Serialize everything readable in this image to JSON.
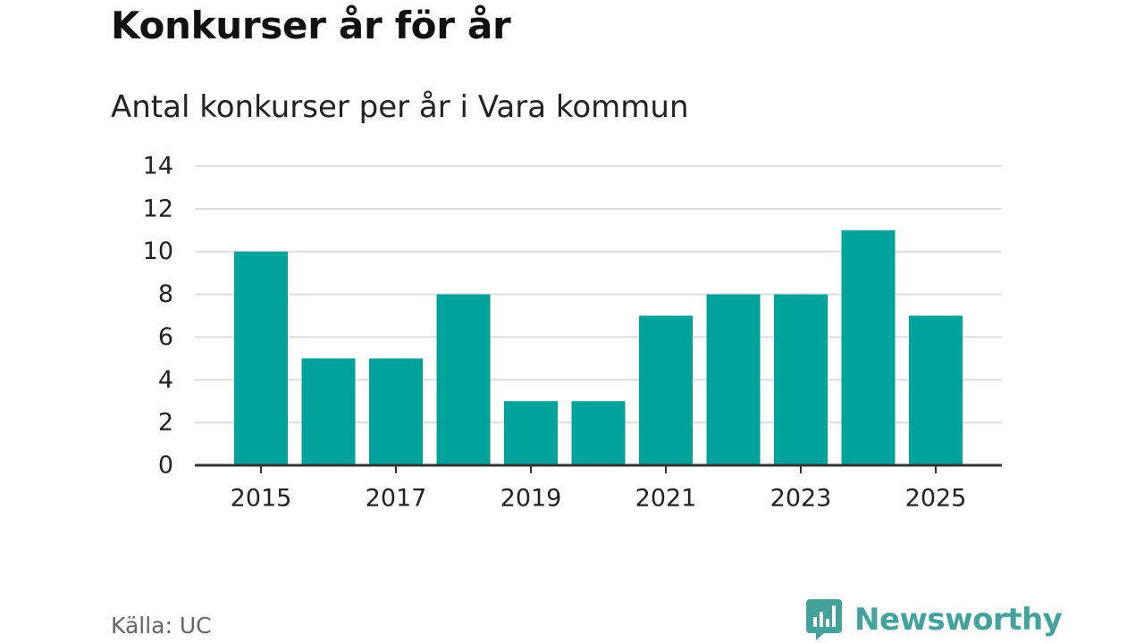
{
  "header": {
    "title": "Konkurser år för år",
    "subtitle": "Antal konkurser per år i Vara kommun"
  },
  "footer": {
    "source": "Källa: UC",
    "brand": "Newsworthy"
  },
  "colors": {
    "bar": "#00a39b",
    "grid": "#dddddd",
    "axis": "#333333",
    "brand": "#43a39c"
  },
  "icons": {
    "brand_logo": "newsworthy-logo-icon"
  },
  "chart_data": {
    "type": "bar",
    "title": "Konkurser år för år",
    "subtitle": "Antal konkurser per år i Vara kommun",
    "xlabel": "",
    "ylabel": "",
    "categories": [
      "2015",
      "2016",
      "2017",
      "2018",
      "2019",
      "2020",
      "2021",
      "2022",
      "2023",
      "2024",
      "2025"
    ],
    "values": [
      10,
      5,
      5,
      8,
      3,
      3,
      7,
      8,
      8,
      11,
      7
    ],
    "x_tick_labels": [
      "2015",
      "2017",
      "2019",
      "2021",
      "2023",
      "2025"
    ],
    "y_ticks": [
      0,
      2,
      4,
      6,
      8,
      10,
      12,
      14
    ],
    "ylim": [
      0,
      14
    ],
    "grid": true,
    "legend": "none"
  }
}
